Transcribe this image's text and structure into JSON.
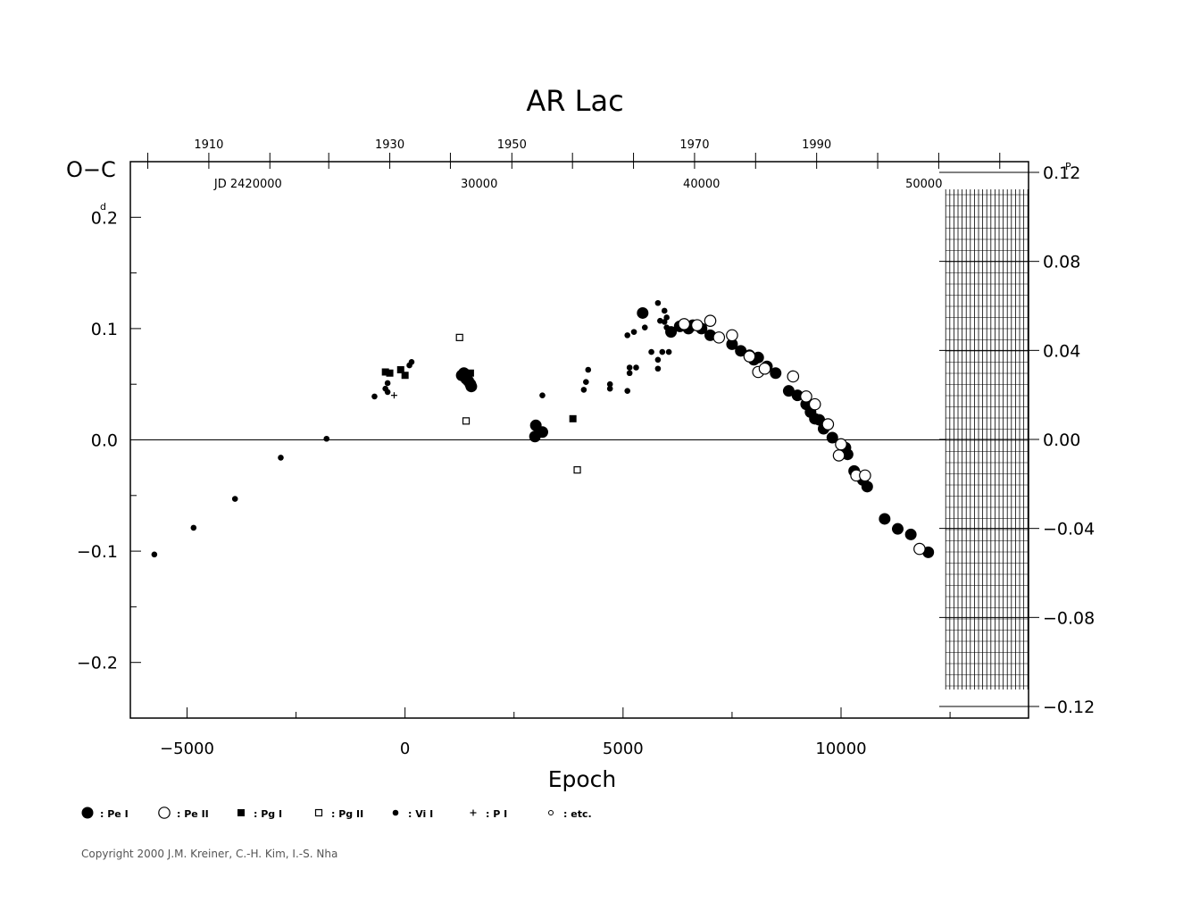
{
  "chart_data": {
    "type": "scatter",
    "title": "AR  Lac",
    "xlabel": "Epoch",
    "ylabel_left": "O−C",
    "ylabel_left_unit": "d",
    "ylabel_right_unit": "P",
    "xlim": [
      -6300,
      14300
    ],
    "ylim_left": [
      -0.25,
      0.25
    ],
    "ylim_right": [
      -0.12,
      0.12
    ],
    "x_ticks": [
      -5000,
      0,
      5000,
      10000
    ],
    "x_tick_labels": [
      "−5000",
      "0",
      "5000",
      "10000"
    ],
    "y_left_ticks": [
      -0.2,
      -0.1,
      0.0,
      0.1,
      0.2
    ],
    "y_left_tick_labels": [
      "−0.2",
      "−0.1",
      "0.0",
      "0.1",
      "0.2"
    ],
    "y_right_ticks": [
      -0.12,
      -0.08,
      -0.04,
      0.0,
      0.04,
      0.08,
      0.12
    ],
    "y_right_tick_labels": [
      "−0.12",
      "−0.08",
      "−0.04",
      "0.00",
      "0.04",
      "0.08",
      "0.12"
    ],
    "top_year_ticks": [
      {
        "epoch": -5900,
        "label": ""
      },
      {
        "epoch": -4500,
        "label": "1910"
      },
      {
        "epoch": -3100,
        "label": ""
      },
      {
        "epoch": -1750,
        "label": ""
      },
      {
        "epoch": -350,
        "label": "1930"
      },
      {
        "epoch": 1040,
        "label": ""
      },
      {
        "epoch": 2450,
        "label": "1950"
      },
      {
        "epoch": 3840,
        "label": ""
      },
      {
        "epoch": 5240,
        "label": ""
      },
      {
        "epoch": 6640,
        "label": "1970"
      },
      {
        "epoch": 8040,
        "label": ""
      },
      {
        "epoch": 9440,
        "label": "1990"
      },
      {
        "epoch": 10840,
        "label": ""
      },
      {
        "epoch": 12240,
        "label": ""
      },
      {
        "epoch": 13640,
        "label": ""
      }
    ],
    "top_jd_ticks": [
      {
        "epoch": -3600,
        "label": "JD  2420000"
      },
      {
        "epoch": 1700,
        "label": "30000"
      },
      {
        "epoch": 6800,
        "label": "40000"
      },
      {
        "epoch": 11900,
        "label": "50000"
      }
    ],
    "hatch_region_start": 12400,
    "legend": [
      {
        "marker": "filled-circle",
        "label": ": Pe I"
      },
      {
        "marker": "open-circle",
        "label": ": Pe II"
      },
      {
        "marker": "filled-square",
        "label": ": Pg I"
      },
      {
        "marker": "open-square",
        "label": ": Pg II"
      },
      {
        "marker": "small-dot",
        "label": ": Vi I"
      },
      {
        "marker": "plus",
        "label": ": P I"
      },
      {
        "marker": "tiny-open-circle",
        "label": ": etc."
      }
    ],
    "series": [
      {
        "marker": "filled-circle",
        "values": [
          [
            3000,
            0.013
          ],
          [
            2980,
            0.003
          ],
          [
            3150,
            0.007
          ],
          [
            1300,
            0.058
          ],
          [
            1400,
            0.055
          ],
          [
            1450,
            0.053
          ],
          [
            1500,
            0.05
          ],
          [
            1520,
            0.048
          ],
          [
            1350,
            0.06
          ],
          [
            5450,
            0.114
          ],
          [
            6100,
            0.097
          ],
          [
            6300,
            0.102
          ],
          [
            6500,
            0.1
          ],
          [
            6600,
            0.103
          ],
          [
            6800,
            0.1
          ],
          [
            7000,
            0.094
          ],
          [
            7500,
            0.086
          ],
          [
            7700,
            0.08
          ],
          [
            7900,
            0.076
          ],
          [
            8000,
            0.072
          ],
          [
            8100,
            0.074
          ],
          [
            8300,
            0.066
          ],
          [
            8500,
            0.06
          ],
          [
            8800,
            0.044
          ],
          [
            9000,
            0.04
          ],
          [
            9200,
            0.032
          ],
          [
            9300,
            0.025
          ],
          [
            9400,
            0.019
          ],
          [
            9500,
            0.018
          ],
          [
            9600,
            0.01
          ],
          [
            9800,
            0.002
          ],
          [
            10100,
            -0.007
          ],
          [
            10150,
            -0.013
          ],
          [
            10300,
            -0.028
          ],
          [
            10500,
            -0.036
          ],
          [
            10600,
            -0.042
          ],
          [
            11000,
            -0.071
          ],
          [
            11300,
            -0.08
          ],
          [
            11600,
            -0.085
          ],
          [
            12000,
            -0.101
          ]
        ]
      },
      {
        "marker": "open-circle",
        "values": [
          [
            6400,
            0.104
          ],
          [
            6700,
            0.103
          ],
          [
            7000,
            0.107
          ],
          [
            7200,
            0.092
          ],
          [
            7500,
            0.094
          ],
          [
            7900,
            0.075
          ],
          [
            8100,
            0.061
          ],
          [
            8250,
            0.064
          ],
          [
            8900,
            0.057
          ],
          [
            9200,
            0.039
          ],
          [
            9400,
            0.032
          ],
          [
            9700,
            0.014
          ],
          [
            9950,
            -0.014
          ],
          [
            10000,
            -0.004
          ],
          [
            10350,
            -0.032
          ],
          [
            10550,
            -0.032
          ],
          [
            11800,
            -0.098
          ]
        ]
      },
      {
        "marker": "filled-square",
        "values": [
          [
            -450,
            0.061
          ],
          [
            -350,
            0.06
          ],
          [
            -100,
            0.063
          ],
          [
            0,
            0.058
          ],
          [
            1300,
            0.058
          ],
          [
            1500,
            0.06
          ],
          [
            3850,
            0.019
          ]
        ]
      },
      {
        "marker": "open-square",
        "values": [
          [
            1250,
            0.092
          ],
          [
            1400,
            0.017
          ],
          [
            3950,
            -0.027
          ]
        ]
      },
      {
        "marker": "small-dot",
        "values": [
          [
            -5750,
            -0.103
          ],
          [
            -4850,
            -0.079
          ],
          [
            -3900,
            -0.053
          ],
          [
            -2850,
            -0.016
          ],
          [
            -1800,
            0.001
          ],
          [
            -700,
            0.039
          ],
          [
            -400,
            0.051
          ],
          [
            -450,
            0.046
          ],
          [
            -400,
            0.043
          ],
          [
            100,
            0.067
          ],
          [
            150,
            0.07
          ],
          [
            3150,
            0.04
          ],
          [
            4100,
            0.045
          ],
          [
            4150,
            0.052
          ],
          [
            4200,
            0.063
          ],
          [
            4700,
            0.05
          ],
          [
            4700,
            0.046
          ],
          [
            5100,
            0.094
          ],
          [
            5150,
            0.065
          ],
          [
            5100,
            0.044
          ],
          [
            5150,
            0.06
          ],
          [
            5250,
            0.097
          ],
          [
            5300,
            0.065
          ],
          [
            5500,
            0.101
          ],
          [
            5650,
            0.079
          ],
          [
            5800,
            0.123
          ],
          [
            5850,
            0.107
          ],
          [
            5800,
            0.072
          ],
          [
            5800,
            0.064
          ],
          [
            5900,
            0.079
          ],
          [
            5950,
            0.116
          ],
          [
            6000,
            0.11
          ],
          [
            5950,
            0.106
          ],
          [
            6000,
            0.101
          ],
          [
            6050,
            0.079
          ]
        ]
      },
      {
        "marker": "plus",
        "values": [
          [
            -250,
            0.04
          ]
        ]
      }
    ]
  },
  "copyright": "Copyright 2000 J.M. Kreiner, C.-H. Kim, I.-S. Nha"
}
